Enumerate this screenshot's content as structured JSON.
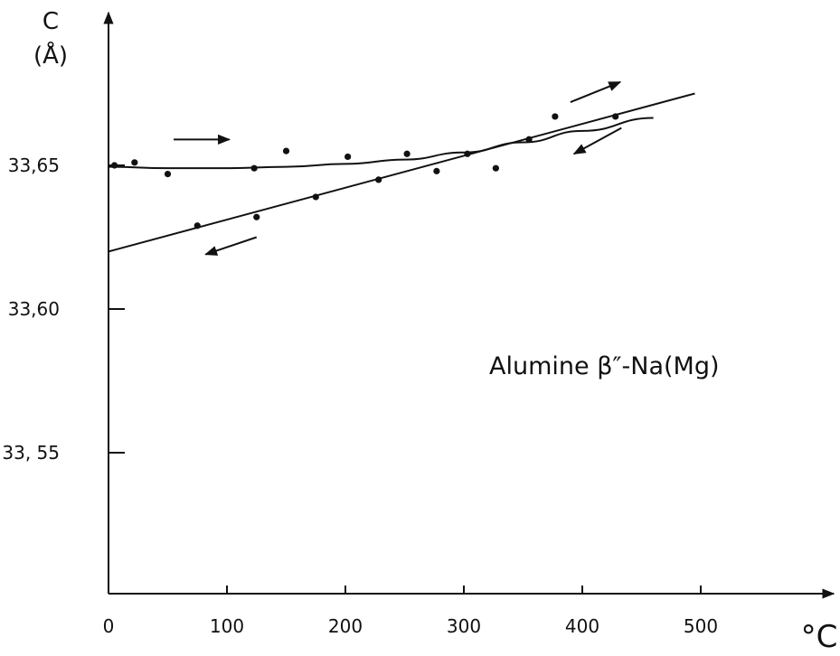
{
  "chart_data": {
    "type": "scatter",
    "title": "",
    "xlabel": "°C",
    "ylabel_line1": "C",
    "ylabel_line2": "(Å)",
    "xlim": [
      0,
      500
    ],
    "ylim": [
      33.5,
      33.68
    ],
    "x_ticks": [
      0,
      100,
      200,
      300,
      400,
      500
    ],
    "x_tick_labels": [
      "0",
      "100",
      "200",
      "300",
      "400",
      "500"
    ],
    "y_ticks": [
      33.55,
      33.6,
      33.65
    ],
    "y_tick_labels": [
      "33, 55",
      "33,60",
      "33,65"
    ],
    "grid": false,
    "annotation": "Alumine β″-Na(Mg)",
    "series": [
      {
        "points": [
          {
            "x": 5,
            "y": 33.65
          },
          {
            "x": 22,
            "y": 33.651
          },
          {
            "x": 50,
            "y": 33.647
          },
          {
            "x": 123,
            "y": 33.649
          },
          {
            "x": 150,
            "y": 33.655
          },
          {
            "x": 202,
            "y": 33.653
          },
          {
            "x": 252,
            "y": 33.654
          },
          {
            "x": 277,
            "y": 33.648
          },
          {
            "x": 303,
            "y": 33.654
          },
          {
            "x": 327,
            "y": 33.649
          },
          {
            "x": 355,
            "y": 33.659
          },
          {
            "x": 377,
            "y": 33.667
          }
        ],
        "fit_curve": [
          {
            "x": 0,
            "y": 33.6495
          },
          {
            "x": 50,
            "y": 33.649
          },
          {
            "x": 100,
            "y": 33.649
          },
          {
            "x": 150,
            "y": 33.6495
          },
          {
            "x": 200,
            "y": 33.6505
          },
          {
            "x": 250,
            "y": 33.652
          },
          {
            "x": 300,
            "y": 33.6545
          },
          {
            "x": 350,
            "y": 33.658
          },
          {
            "x": 400,
            "y": 33.662
          },
          {
            "x": 460,
            "y": 33.6665
          }
        ]
      },
      {
        "points": [
          {
            "x": 75,
            "y": 33.629
          },
          {
            "x": 125,
            "y": 33.632
          },
          {
            "x": 175,
            "y": 33.639
          },
          {
            "x": 228,
            "y": 33.645
          },
          {
            "x": 355,
            "y": 33.659
          },
          {
            "x": 428,
            "y": 33.667
          }
        ],
        "fit_line": [
          {
            "x": 0,
            "y": 33.62
          },
          {
            "x": 495,
            "y": 33.675
          }
        ]
      }
    ],
    "direction_arrows": [
      {
        "from": [
          55,
          33.659
        ],
        "to": [
          102,
          33.659
        ]
      },
      {
        "from": [
          390,
          33.672
        ],
        "to": [
          432,
          33.679
        ]
      },
      {
        "from": [
          433,
          33.663
        ],
        "to": [
          393,
          33.654
        ]
      },
      {
        "from": [
          125,
          33.625
        ],
        "to": [
          82,
          33.619
        ]
      }
    ]
  }
}
